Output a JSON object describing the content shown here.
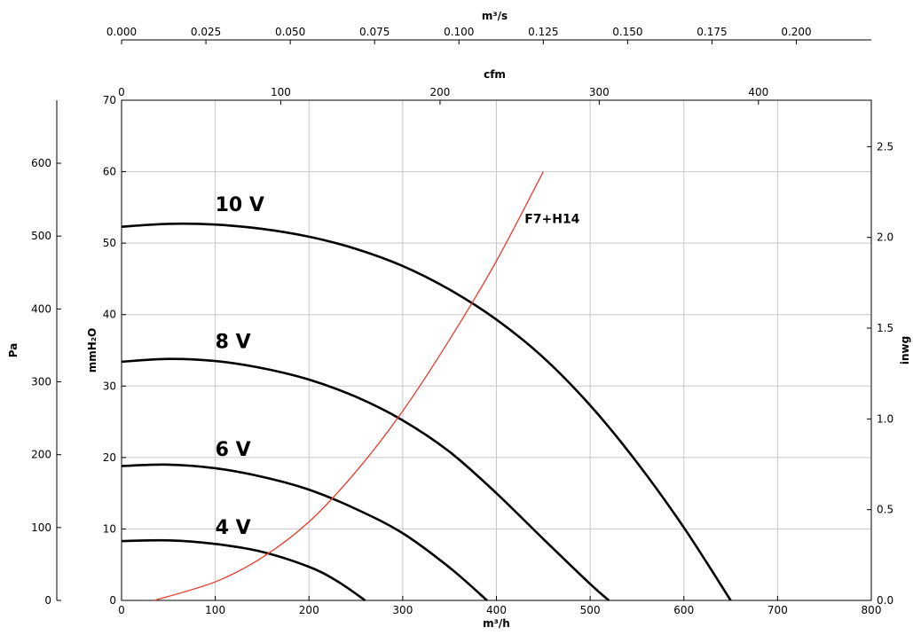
{
  "chart_data": {
    "type": "line",
    "grid": true,
    "x_axis": {
      "label": "m³/h",
      "ticks": [
        "0",
        "100",
        "200",
        "300",
        "400",
        "500",
        "600",
        "700",
        "800"
      ],
      "range": [
        0,
        800
      ]
    },
    "y_axis": {
      "label": "mmH₂O",
      "ticks": [
        "0",
        "10",
        "20",
        "30",
        "40",
        "50",
        "60",
        "70"
      ],
      "range": [
        0,
        70
      ]
    },
    "top_axes": [
      {
        "label": "m³/s",
        "ticks": [
          "0.000",
          "0.025",
          "0.050",
          "0.075",
          "0.100",
          "0.125",
          "0.150",
          "0.175",
          "0.200"
        ]
      },
      {
        "label": "cfm",
        "ticks": [
          "0",
          "100",
          "200",
          "300",
          "400"
        ]
      }
    ],
    "left_axis": {
      "label": "Pa",
      "ticks": [
        "0",
        "100",
        "200",
        "300",
        "400",
        "500",
        "600"
      ]
    },
    "right_axis": {
      "label": "inwg",
      "ticks": [
        "0.0",
        "0.5",
        "1.0",
        "1.5",
        "2.0",
        "2.5"
      ]
    },
    "series": [
      {
        "name": "10 V",
        "color": "#000000",
        "x": [
          0,
          50,
          100,
          150,
          200,
          250,
          300,
          350,
          400,
          450,
          500,
          550,
          600,
          650
        ],
        "y": [
          52.3,
          52.7,
          52.6,
          52.0,
          50.9,
          49.2,
          46.8,
          43.5,
          39.3,
          34.0,
          27.3,
          19.3,
          10.2,
          0
        ]
      },
      {
        "name": "8 V",
        "color": "#000000",
        "x": [
          0,
          50,
          100,
          150,
          200,
          250,
          300,
          350,
          400,
          450,
          500,
          520
        ],
        "y": [
          33.4,
          33.8,
          33.5,
          32.5,
          30.9,
          28.5,
          25.2,
          20.8,
          15.0,
          8.6,
          2.3,
          0
        ]
      },
      {
        "name": "6 V",
        "color": "#000000",
        "x": [
          0,
          50,
          100,
          150,
          200,
          250,
          300,
          350,
          390
        ],
        "y": [
          18.8,
          19.0,
          18.5,
          17.3,
          15.5,
          12.8,
          9.4,
          4.6,
          0
        ]
      },
      {
        "name": "4 V",
        "color": "#000000",
        "x": [
          0,
          50,
          100,
          150,
          200,
          230,
          260
        ],
        "y": [
          8.3,
          8.4,
          7.9,
          6.8,
          4.7,
          2.7,
          0
        ]
      },
      {
        "name": "F7+H14",
        "color": "#e8392b",
        "x": [
          35,
          100,
          150,
          200,
          250,
          300,
          350,
          400,
          450
        ],
        "y": [
          0,
          2.6,
          6.0,
          11.0,
          18.0,
          26.5,
          36.5,
          47.5,
          60.0
        ]
      }
    ],
    "labels": [
      {
        "text": "10 V",
        "x": 100,
        "y": 54.5
      },
      {
        "text": "8 V",
        "x": 100,
        "y": 35.3
      },
      {
        "text": "6 V",
        "x": 100,
        "y": 20.2
      },
      {
        "text": "4 V",
        "x": 100,
        "y": 9.3
      },
      {
        "text": "F7+H14",
        "x": 430,
        "y": 52.8
      }
    ]
  }
}
